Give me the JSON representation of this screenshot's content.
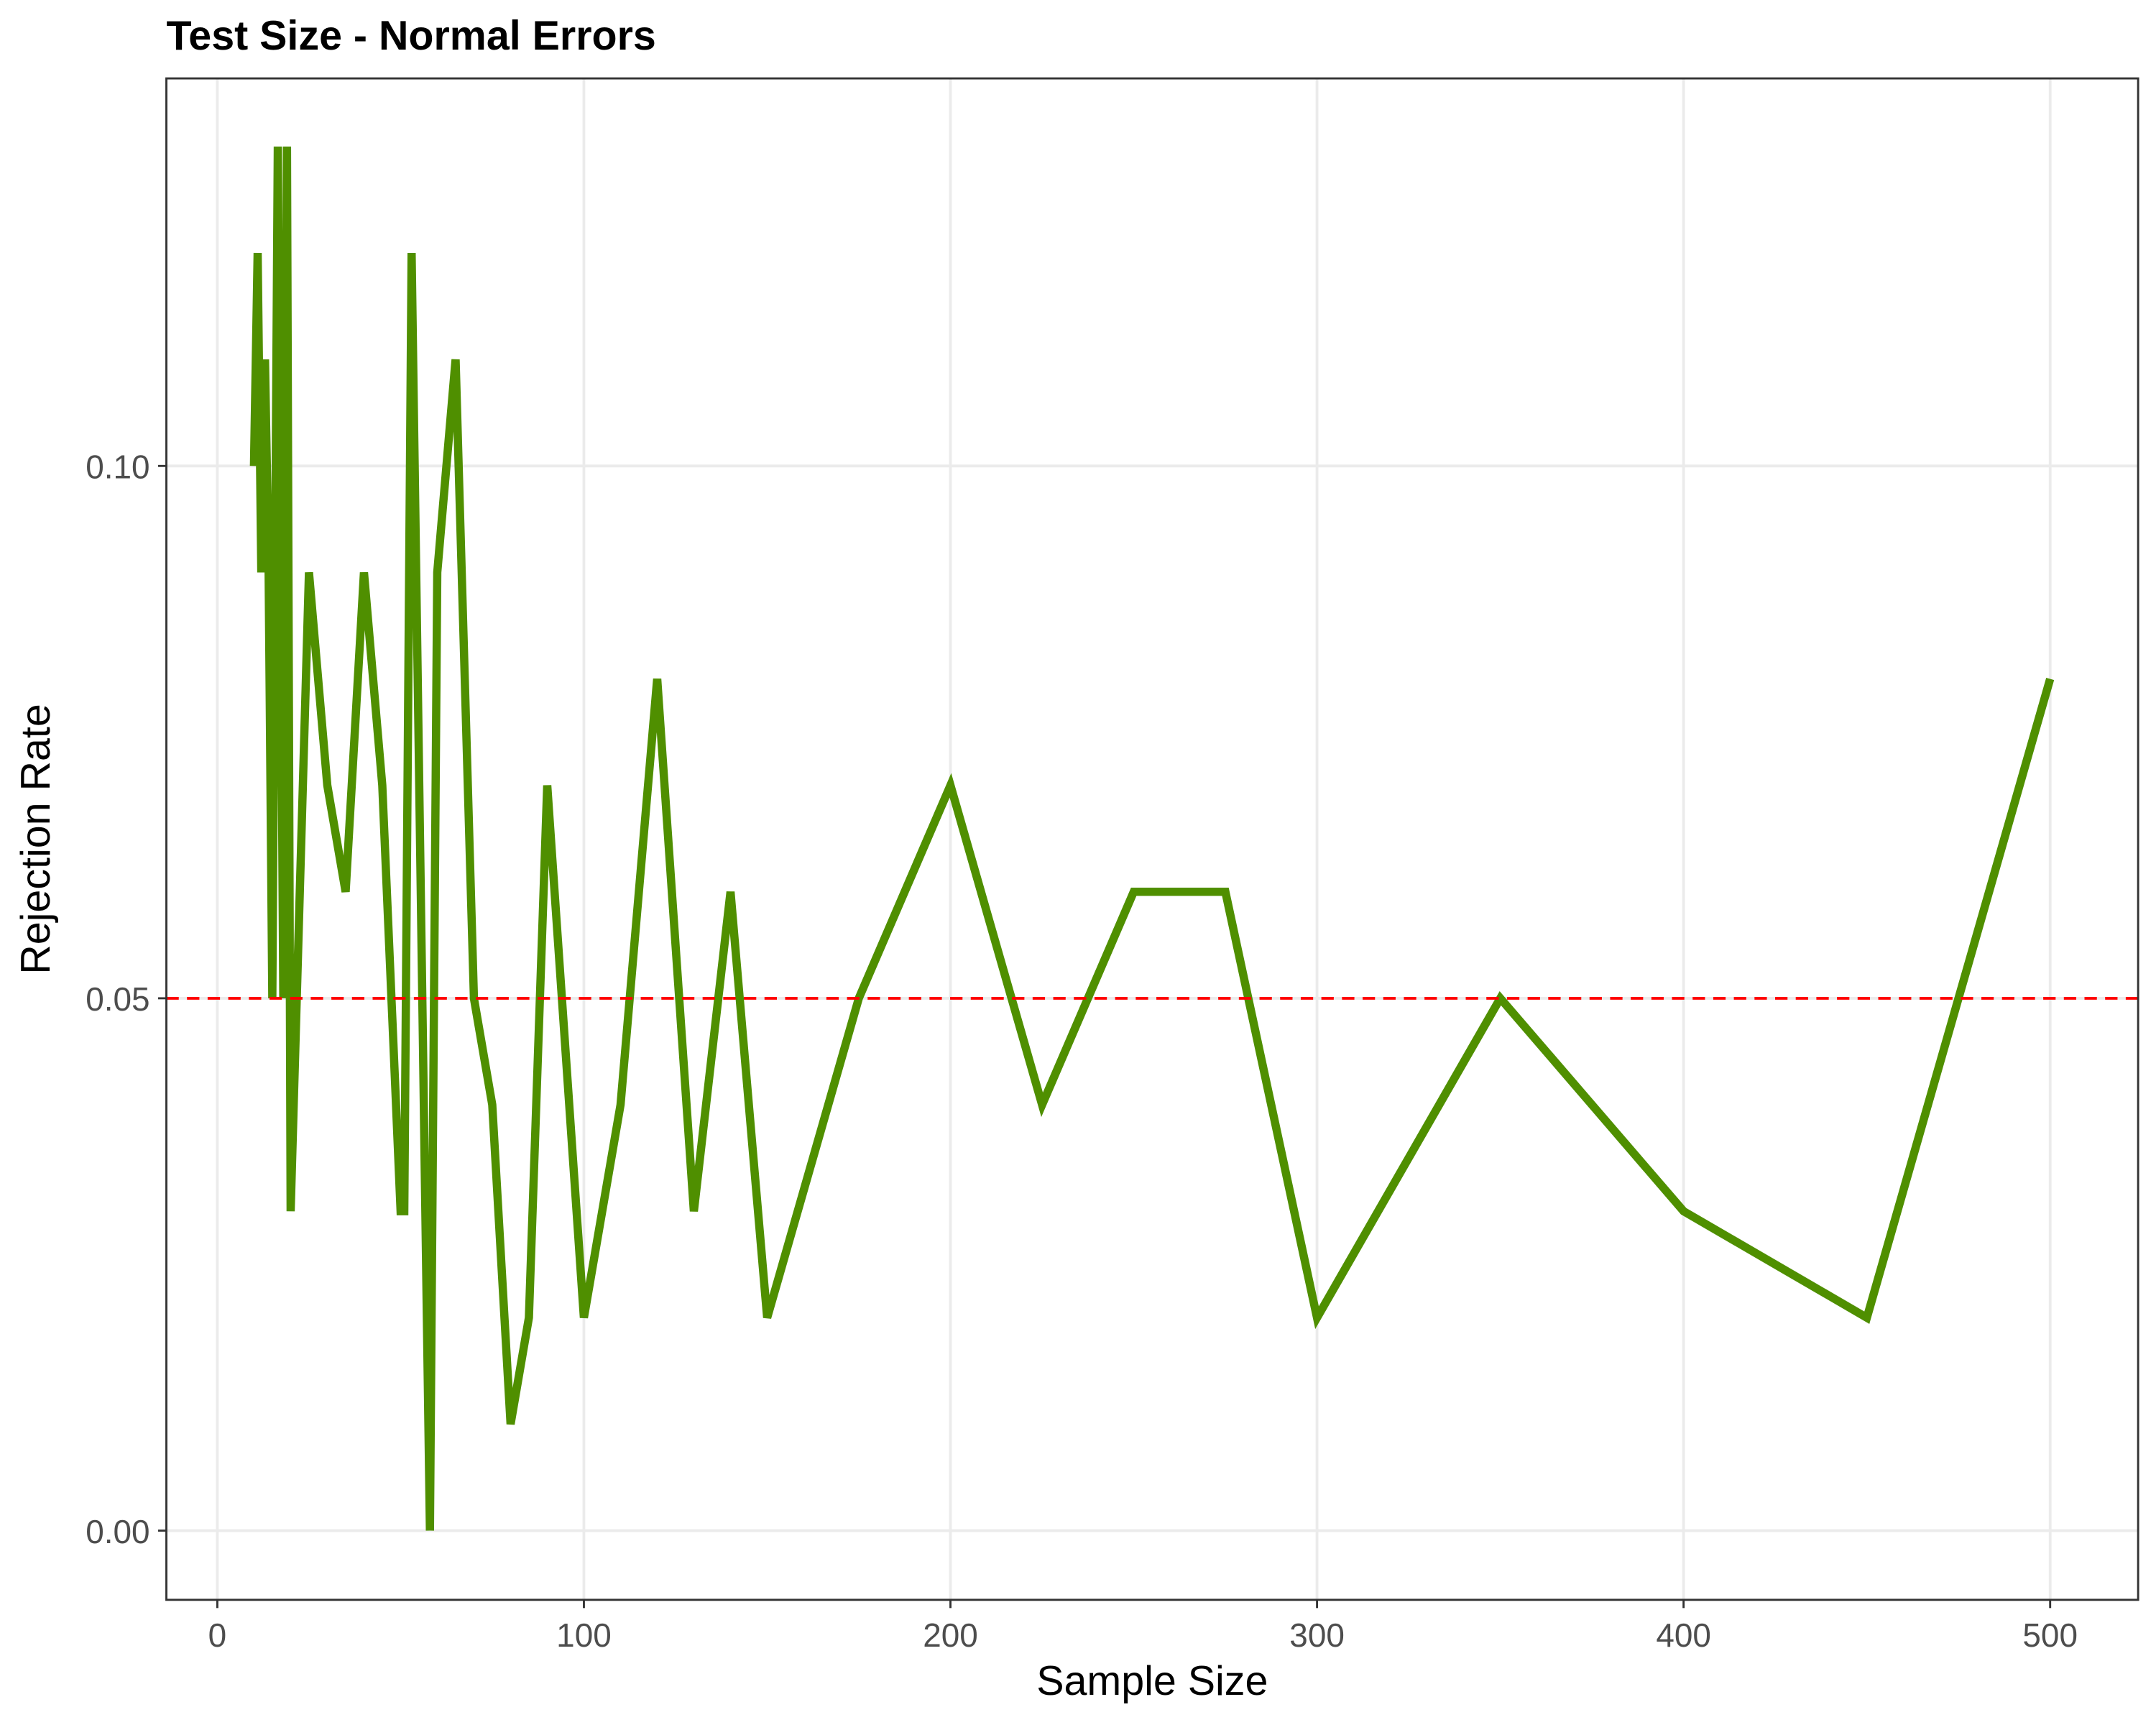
{
  "chart_data": {
    "type": "line",
    "title": "Test Size - Normal Errors",
    "x_label": "Sample Size",
    "y_label": "Rejection Rate",
    "x": [
      10,
      11,
      12,
      13,
      14,
      15,
      16.5,
      18,
      19,
      20,
      25,
      30,
      35,
      40,
      45,
      50,
      51,
      53,
      58,
      60,
      65,
      70,
      75,
      80,
      85,
      90,
      100,
      110,
      120,
      130,
      140,
      150,
      175,
      200,
      225,
      250,
      275,
      300,
      350,
      400,
      450,
      500
    ],
    "series": [
      {
        "name": "Rejection Rate",
        "color": "#4f8f00",
        "values": [
          0.1,
          0.12,
          0.09,
          0.11,
          0.09,
          0.05,
          0.13,
          0.05,
          0.13,
          0.03,
          0.09,
          0.07,
          0.06,
          0.09,
          0.07,
          0.03,
          0.03,
          0.12,
          0.0,
          0.09,
          0.11,
          0.05,
          0.04,
          0.01,
          0.02,
          0.07,
          0.02,
          0.04,
          0.08,
          0.03,
          0.06,
          0.02,
          0.05,
          0.07,
          0.04,
          0.06,
          0.06,
          0.02,
          0.05,
          0.03,
          0.02,
          0.08
        ]
      }
    ],
    "hline": {
      "value": 0.05,
      "color": "#ff0000"
    },
    "xlim": [
      -13.9,
      524
    ],
    "ylim": [
      -0.0065,
      0.1364
    ],
    "xticks": [
      0,
      100,
      200,
      300,
      400,
      500
    ],
    "yticks": [
      {
        "value": 0,
        "label": "0.00"
      },
      {
        "value": 0.05,
        "label": "0.05"
      },
      {
        "value": 0.1,
        "label": "0.10"
      }
    ],
    "grid": true
  }
}
